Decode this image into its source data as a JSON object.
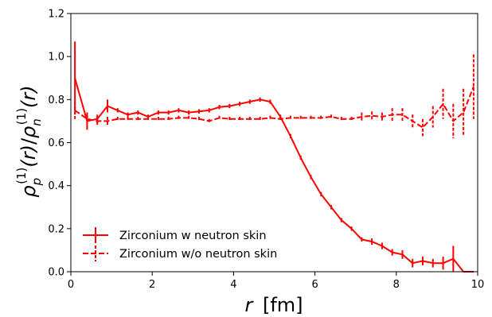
{
  "chart_data": {
    "type": "line",
    "xlabel_italic": "r",
    "xlabel_unit": "[fm]",
    "ylabel": {
      "rho": "ρ",
      "sub_p": "p",
      "sub_n": "n",
      "sup": "(1)",
      "arg": "(r)",
      "slash": "/"
    },
    "xlim": [
      0,
      10
    ],
    "ylim": [
      0.0,
      1.2
    ],
    "xticks": [
      0,
      2,
      4,
      6,
      8,
      10
    ],
    "xtick_labels": [
      "0",
      "2",
      "4",
      "6",
      "8",
      "10"
    ],
    "yticks": [
      0.0,
      0.2,
      0.4,
      0.6,
      0.8,
      1.0,
      1.2
    ],
    "ytick_labels": [
      "0.0",
      "0.2",
      "0.4",
      "0.6",
      "0.8",
      "1.0",
      "1.2"
    ],
    "legend_position": "lower-left",
    "grid": false,
    "series": [
      {
        "name": "Zirconium w neutron skin",
        "color": "#ff0000",
        "dash": "solid",
        "x": [
          0.1,
          0.4,
          0.65,
          0.9,
          1.15,
          1.4,
          1.65,
          1.9,
          2.15,
          2.4,
          2.65,
          2.9,
          3.15,
          3.4,
          3.65,
          3.9,
          4.15,
          4.4,
          4.65,
          4.9,
          5.15,
          5.4,
          5.65,
          5.9,
          6.15,
          6.4,
          6.65,
          6.9,
          7.15,
          7.4,
          7.65,
          7.9,
          8.15,
          8.4,
          8.65,
          8.9,
          9.15,
          9.4,
          9.65,
          9.9
        ],
        "y": [
          0.9,
          0.7,
          0.71,
          0.77,
          0.75,
          0.73,
          0.74,
          0.72,
          0.74,
          0.74,
          0.75,
          0.74,
          0.745,
          0.75,
          0.765,
          0.77,
          0.78,
          0.79,
          0.8,
          0.79,
          0.72,
          0.63,
          0.53,
          0.44,
          0.36,
          0.3,
          0.24,
          0.2,
          0.15,
          0.14,
          0.12,
          0.09,
          0.08,
          0.04,
          0.05,
          0.04,
          0.04,
          0.06,
          0.0,
          0.0
        ],
        "err": [
          0.17,
          0.04,
          0.02,
          0.03,
          0.01,
          0.01,
          0.01,
          0.01,
          0.01,
          0.01,
          0.01,
          0.01,
          0.01,
          0.01,
          0.01,
          0.01,
          0.01,
          0.01,
          0.01,
          0.01,
          0.01,
          0.01,
          0.01,
          0.01,
          0.01,
          0.01,
          0.01,
          0.01,
          0.01,
          0.015,
          0.015,
          0.015,
          0.02,
          0.02,
          0.02,
          0.02,
          0.03,
          0.06,
          0.0,
          0.0
        ]
      },
      {
        "name": "Zirconium w/o neutron skin",
        "color": "#ff0000",
        "dash": "dashed",
        "x": [
          0.1,
          0.4,
          0.65,
          0.9,
          1.15,
          1.4,
          1.65,
          1.9,
          2.15,
          2.4,
          2.65,
          2.9,
          3.15,
          3.4,
          3.65,
          3.9,
          4.15,
          4.4,
          4.65,
          4.9,
          5.15,
          5.4,
          5.65,
          5.9,
          6.15,
          6.4,
          6.65,
          6.9,
          7.15,
          7.4,
          7.65,
          7.9,
          8.15,
          8.4,
          8.65,
          8.9,
          9.15,
          9.4,
          9.65,
          9.9
        ],
        "y": [
          0.75,
          0.71,
          0.7,
          0.7,
          0.71,
          0.71,
          0.71,
          0.71,
          0.71,
          0.71,
          0.715,
          0.715,
          0.71,
          0.7,
          0.715,
          0.71,
          0.71,
          0.71,
          0.71,
          0.715,
          0.71,
          0.715,
          0.715,
          0.715,
          0.715,
          0.72,
          0.71,
          0.71,
          0.72,
          0.725,
          0.72,
          0.73,
          0.73,
          0.7,
          0.67,
          0.72,
          0.78,
          0.7,
          0.74,
          0.86
        ],
        "err": [
          0.04,
          0.02,
          0.02,
          0.02,
          0.01,
          0.01,
          0.01,
          0.01,
          0.01,
          0.01,
          0.01,
          0.01,
          0.01,
          0.01,
          0.01,
          0.01,
          0.01,
          0.01,
          0.01,
          0.01,
          0.01,
          0.01,
          0.01,
          0.01,
          0.01,
          0.01,
          0.01,
          0.01,
          0.02,
          0.02,
          0.02,
          0.03,
          0.03,
          0.03,
          0.04,
          0.05,
          0.07,
          0.08,
          0.11,
          0.15
        ]
      }
    ]
  }
}
